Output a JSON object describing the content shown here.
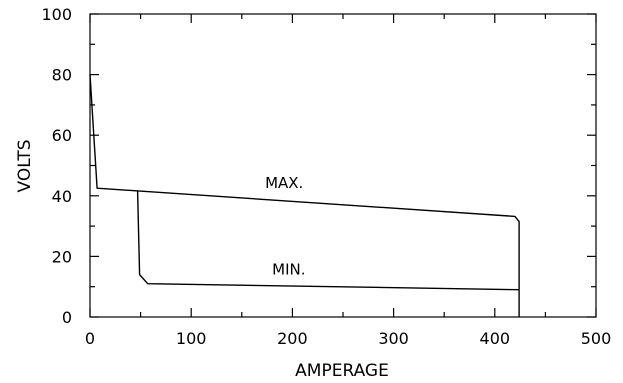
{
  "chart_data": {
    "type": "line",
    "title": "",
    "xlabel": "AMPERAGE",
    "ylabel": "VOLTS",
    "xlim": [
      0,
      500
    ],
    "ylim": [
      0,
      100
    ],
    "x_ticks": [
      0,
      100,
      200,
      300,
      400,
      500
    ],
    "y_ticks": [
      0,
      20,
      40,
      60,
      80,
      100
    ],
    "grid": false,
    "legend": "none",
    "line_color": "#000000",
    "series": [
      {
        "name": "MAX.",
        "points": [
          [
            0,
            80
          ],
          [
            7,
            42.5
          ],
          [
            420,
            33.2
          ],
          [
            424,
            31.5
          ],
          [
            424,
            0
          ]
        ]
      },
      {
        "name": "MIN.",
        "points": [
          [
            47,
            41.5
          ],
          [
            49,
            14
          ],
          [
            57,
            11
          ],
          [
            424,
            9
          ]
        ]
      }
    ],
    "annotations": [
      {
        "text": "MAX.",
        "x": 173,
        "y": 42.5
      },
      {
        "text": "MIN.",
        "x": 180,
        "y": 14
      }
    ]
  }
}
